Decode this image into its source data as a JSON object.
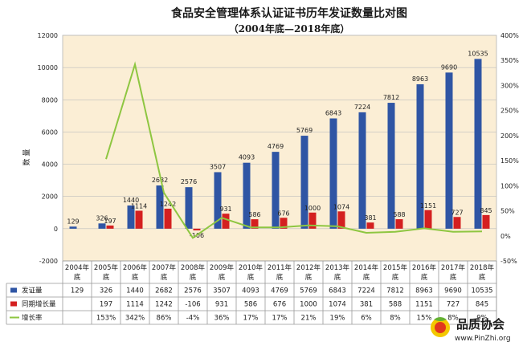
{
  "chart_data": {
    "type": "bar",
    "title": "食品安全管理体系认证证书历年发证数量比对图",
    "subtitle": "（2004年底—2018年底）",
    "ylabel": "数 量",
    "ylim": [
      -2000,
      12000
    ],
    "y2lim": [
      -50,
      400
    ],
    "y_ticks": [
      "-2000",
      "0",
      "2000",
      "4000",
      "6000",
      "8000",
      "10000",
      "12000"
    ],
    "y2_ticks": [
      "-50%",
      "0%",
      "50%",
      "100%",
      "150%",
      "200%",
      "250%",
      "300%",
      "350%",
      "400%"
    ],
    "categories": [
      "2004年底",
      "2005年底",
      "2006年底",
      "2007年底",
      "2008年底",
      "2009年底",
      "2010年底",
      "2011年底",
      "2012年底",
      "2013年底",
      "2014年底",
      "2015年底",
      "2016年底",
      "2017年底",
      "2018年底"
    ],
    "category_lines": [
      [
        "2004年",
        "底"
      ],
      [
        "2005年",
        "底"
      ],
      [
        "2006年",
        "底"
      ],
      [
        "2007年",
        "底"
      ],
      [
        "2008年",
        "底"
      ],
      [
        "2009年",
        "底"
      ],
      [
        "2010年",
        "底"
      ],
      [
        "2011年",
        "底"
      ],
      [
        "2012年",
        "底"
      ],
      [
        "2013年",
        "底"
      ],
      [
        "2014年",
        "底"
      ],
      [
        "2015年",
        "底"
      ],
      [
        "2016年",
        "底"
      ],
      [
        "2017年",
        "底"
      ],
      [
        "2018年",
        "底"
      ]
    ],
    "series": [
      {
        "name": "发证量",
        "type": "bar",
        "axis": "left",
        "color": "#2f55a4",
        "values": [
          129,
          326,
          1440,
          2682,
          2576,
          3507,
          4093,
          4769,
          5769,
          6843,
          7224,
          7812,
          8963,
          9690,
          10535
        ]
      },
      {
        "name": "同期增长量",
        "type": "bar",
        "axis": "left",
        "color": "#d42020",
        "values": [
          null,
          197,
          1114,
          1242,
          -106,
          931,
          586,
          676,
          1000,
          1074,
          381,
          588,
          1151,
          727,
          845
        ]
      },
      {
        "name": "增长率",
        "type": "line",
        "axis": "right",
        "color": "#8ec641",
        "values": [
          null,
          153,
          342,
          86,
          -4,
          36,
          17,
          17,
          21,
          19,
          6,
          8,
          15,
          8,
          9
        ]
      }
    ],
    "table": {
      "rows": [
        {
          "label": "发证量",
          "color": "#2f55a4",
          "cells": [
            "129",
            "326",
            "1440",
            "2682",
            "2576",
            "3507",
            "4093",
            "4769",
            "5769",
            "6843",
            "7224",
            "7812",
            "8963",
            "9690",
            "10535"
          ]
        },
        {
          "label": "同期增长量",
          "color": "#d42020",
          "cells": [
            "",
            "197",
            "1114",
            "1242",
            "-106",
            "931",
            "586",
            "676",
            "1000",
            "1074",
            "381",
            "588",
            "1151",
            "727",
            "845"
          ]
        },
        {
          "label": "增长率",
          "color": "#8ec641",
          "cells": [
            "",
            "153%",
            "342%",
            "86%",
            "-4%",
            "36%",
            "17%",
            "17%",
            "21%",
            "19%",
            "6%",
            "8%",
            "15%",
            "8%",
            "9%"
          ]
        }
      ]
    },
    "colors": {
      "plot_bg": "#fbeed5",
      "grid": "#bdbdbd"
    }
  },
  "watermark": {
    "brand": "品质协会",
    "url": "www.PinZhi.org"
  }
}
